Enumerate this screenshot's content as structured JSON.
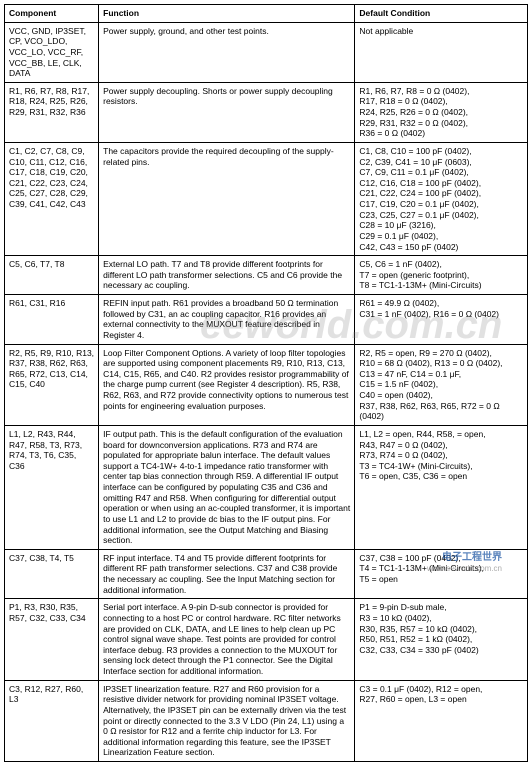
{
  "table": {
    "headers": [
      "Component",
      "Function",
      "Default Condition"
    ],
    "rows": [
      {
        "component": "VCC, GND, IP3SET, CP, VCO_LDO, VCC_LO, VCC_RF, VCC_BB, LE, CLK, DATA",
        "function": "Power supply, ground, and other test points.",
        "default": "Not applicable"
      },
      {
        "component": "R1, R6, R7, R8, R17, R18, R24, R25, R26, R29, R31, R32, R36",
        "function": "Power supply decoupling. Shorts or power supply decoupling resistors.",
        "default": "R1, R6, R7, R8 = 0 Ω (0402),\nR17, R18 = 0 Ω (0402),\nR24, R25, R26 = 0 Ω (0402),\nR29, R31, R32 = 0 Ω (0402),\nR36 = 0 Ω (0402)"
      },
      {
        "component": "C1, C2, C7, C8, C9, C10, C11, C12, C16, C17, C18, C19, C20, C21, C22, C23, C24, C25, C27, C28, C29, C39, C41, C42, C43",
        "function": "The capacitors provide the required decoupling of the supply-related pins.",
        "default": "C1, C8, C10 = 100 pF (0402),\nC2, C39, C41 = 10 μF (0603),\nC7, C9, C11 = 0.1 μF (0402),\nC12, C16, C18 = 100 pF (0402),\nC21, C22, C24 = 100 pF (0402),\nC17, C19, C20 = 0.1 μF (0402),\nC23, C25, C27 = 0.1 μF (0402),\nC28 = 10 μF (3216),\nC29 = 0.1 μF (0402),\nC42, C43 = 150 pF (0402)"
      },
      {
        "component": "C5, C6, T7, T8",
        "function": "External LO path. T7 and T8 provide different footprints for different LO path transformer selections. C5 and C6 provide the necessary ac coupling.",
        "default": "C5, C6 = 1 nF (0402),\nT7 = open (generic footprint),\nT8 = TC1-1-13M+ (Mini-Circuits)"
      },
      {
        "component": "R61, C31, R16",
        "function": "REFIN input path. R61 provides a broadband 50 Ω termination followed by C31, an ac coupling capacitor. R16 provides an external connectivity to the MUXOUT feature described in Register 4.",
        "default": "R61 = 49.9 Ω (0402),\nC31 = 1 nF (0402), R16 = 0 Ω (0402)"
      },
      {
        "component": "R2, R5, R9, R10, R13, R37, R38, R62, R63, R65, R72, C13, C14, C15, C40",
        "function": "Loop Filter Component Options. A variety of loop filter topologies are supported using component placements R9, R10, R13, C13, C14, C15, R65, and C40. R2 provides resistor programmability of the charge pump current (see Register 4 description). R5, R38, R62, R63, and R72 provide connectivity options to numerous test points for engineering evaluation purposes.",
        "default": "R2, R5 = open, R9 = 270 Ω (0402),\nR10 = 68 Ω (0402), R13 = 0 Ω (0402),\nC13 = 47 nF, C14 = 0.1 μF,\nC15 = 1.5 nF (0402),\nC40 = open (0402),\nR37, R38, R62, R63, R65, R72 = 0 Ω (0402)"
      },
      {
        "component": "L1, L2, R43, R44, R47, R58, T3, R73, R74, T3, T6, C35, C36",
        "function": "IF output path. This is the default configuration of the evaluation board for downconversion applications. R73 and R74 are populated for appropriate balun interface. The default values support a TC4-1W+ 4-to-1 impedance ratio transformer with center tap bias connection through R59. A differential IF output interface can be configured by populating C35 and C36 and omitting R47 and R58. When configuring for differential output operation or when using an ac-coupled transformer, it is important to use L1 and L2 to provide dc bias to the IF output pins. For additional information, see the Output Matching and Biasing section.",
        "default": "L1, L2 = open, R44, R58, = open,\nR43, R47 = 0 Ω (0402),\nR73, R74 = 0 Ω (0402),\nT3 = TC4-1W+ (Mini-Circuits),\nT6 = open, C35, C36 = open"
      },
      {
        "component": "C37, C38, T4, T5",
        "function": "RF input interface. T4 and T5 provide different footprints for different RF path transformer selections. C37 and C38 provide the necessary ac coupling. See the Input Matching section for additional information.",
        "default": "C37, C38 = 100 pF (0402),\nT4 = TC1-1-13M+ (Mini-Circuits),\nT5 = open"
      },
      {
        "component": "P1, R3, R30, R35, R57, C32, C33, C34",
        "function": "Serial port interface. A 9-pin D-sub connector is provided for connecting to a host PC or control hardware. RC filter networks are provided on CLK, DATA, and LE lines to help clean up PC control signal wave shape. Test points are provided for control interface debug. R3 provides a connection to the MUXOUT for sensing lock detect through the P1 connector. See the Digital Interface section for additional information.",
        "default": "P1 = 9-pin D-sub male,\nR3 = 10 kΩ (0402),\nR30, R35, R57 = 10 kΩ (0402),\nR50, R51, R52 = 1 kΩ (0402),\nC32, C33, C34 = 330 pF (0402)"
      },
      {
        "component": "C3, R12, R27, R60, L3",
        "function": "IP3SET linearization feature. R27 and R60 provision for a resistive divider network for providing nominal IP3SET voltage. Alternatively, the IP3SET pin can be externally driven via the test point or directly connected to the 3.3 V LDO (Pin 24, L1) using a 0 Ω resistor for R12 and a ferrite chip inductor for L3. For additional information regarding this feature, see the IP3SET Linearization Feature section.",
        "default": "C3 = 0.1 μF (0402), R12 = open,\nR27, R60 = open, L3 = open"
      }
    ]
  },
  "watermark_text": "eeworld.com.cn",
  "footer": {
    "cn_text": "电子工程世界",
    "url": "www.eeworld.com.cn"
  }
}
